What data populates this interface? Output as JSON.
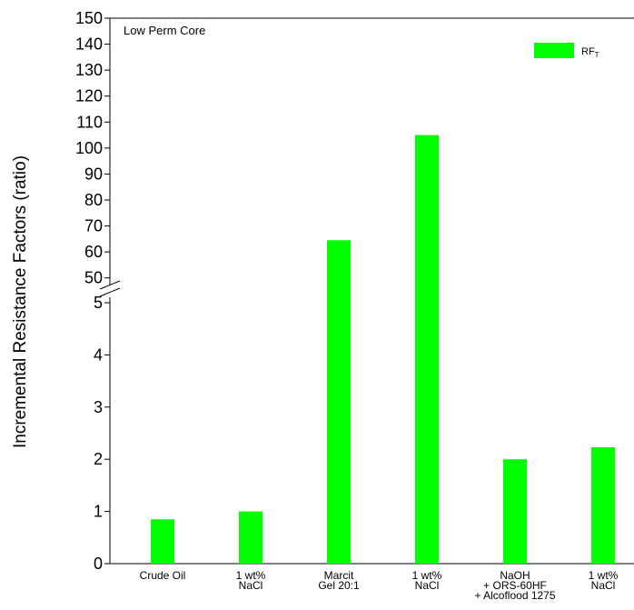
{
  "chart_data": {
    "type": "bar",
    "panel_label": "Low Perm Core",
    "ylabel": "Incremental Resistance Factors (ratio)",
    "y_axis_break": true,
    "y_lower_range": [
      0,
      5
    ],
    "y_upper_range": [
      45,
      150
    ],
    "y_lower_ticks": [
      "0",
      "1",
      "2",
      "3",
      "4",
      "5"
    ],
    "y_upper_ticks": [
      "50",
      "60",
      "70",
      "80",
      "90",
      "100",
      "110",
      "120",
      "130",
      "140",
      "150"
    ],
    "categories": [
      [
        "Crude Oil"
      ],
      [
        "1 wt%",
        "NaCl"
      ],
      [
        "Marcit",
        "Gel 20:1"
      ],
      [
        "1 wt%",
        "NaCl"
      ],
      [
        "NaOH",
        "+ ORS-60HF",
        "+ Alcoflood 1275"
      ],
      [
        "1 wt%",
        "NaCl"
      ]
    ],
    "series": [
      {
        "name": "RF",
        "name_subscript": "T",
        "color": "#00ff00",
        "values": [
          0.85,
          1.0,
          64.5,
          105,
          2.0,
          2.23
        ]
      }
    ],
    "legend_position": "top-right",
    "grid": false
  }
}
